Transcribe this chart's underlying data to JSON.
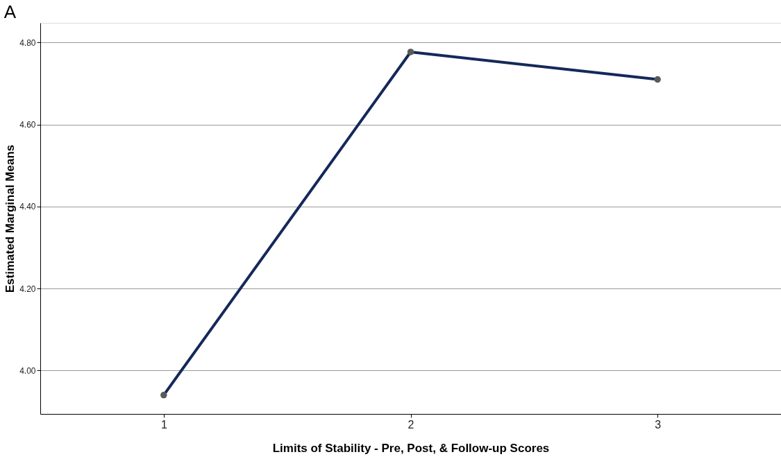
{
  "chart_data": {
    "type": "line",
    "title": "A",
    "xlabel": "Limits of Stability - Pre, Post, & Follow-up Scores",
    "ylabel": "Estimated Marginal Means",
    "categories": [
      "1",
      "2",
      "3"
    ],
    "series": [
      {
        "color": "#14285a",
        "values": [
          3.94,
          4.777,
          4.71
        ]
      }
    ],
    "ylim": [
      3.894,
      4.848
    ],
    "yticks": [
      {
        "value": 4.0,
        "label": "4.00"
      },
      {
        "value": 4.2,
        "label": "4.20"
      },
      {
        "value": 4.4,
        "label": "4.40"
      },
      {
        "value": 4.6,
        "label": "4.60"
      },
      {
        "value": 4.8,
        "label": "4.80"
      }
    ],
    "grid": "y",
    "marker": "circle",
    "line_style": "solid"
  }
}
